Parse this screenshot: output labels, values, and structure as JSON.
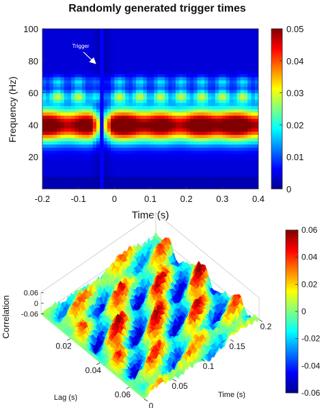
{
  "chart_data": [
    {
      "type": "heatmap",
      "title": "Randomly generated trigger times",
      "xlabel": "Time (s)",
      "ylabel": "Frequency (Hz)",
      "xlim": [
        -0.2,
        0.4
      ],
      "ylim": [
        0,
        100
      ],
      "xticks": [
        "-0.2",
        "-0.1",
        "0",
        "0.1",
        "0.2",
        "0.3",
        "0.4"
      ],
      "yticks": [
        "20",
        "40",
        "60",
        "80",
        "100"
      ],
      "colorbar": {
        "ticks": [
          "0",
          "0.01",
          "0.02",
          "0.03",
          "0.04",
          "0.05"
        ],
        "range": [
          0,
          0.05
        ]
      },
      "annotation": "Trigger",
      "trigger_band": {
        "time_start": -0.042,
        "time_end": -0.028
      },
      "band": {
        "center_freq": 40,
        "width_hz": 7,
        "peak_value": 0.05
      },
      "ringing_peaks": [
        {
          "freq": 58,
          "value": 0.024
        },
        {
          "freq": 67,
          "value": 0.014
        }
      ],
      "colormap": [
        "#00008f",
        "#0000ff",
        "#00ffff",
        "#ffff00",
        "#ff0000",
        "#800000"
      ]
    },
    {
      "type": "surface",
      "xlabel": "Lag (s)",
      "ylabel": "Time (s)",
      "zlabel": "Correlation",
      "xticks": [
        "0.02",
        "0.04",
        "0.06"
      ],
      "yticks": [
        "0",
        "0.05",
        "0.1",
        "0.15",
        "0.2"
      ],
      "zticks": [
        "0.06",
        "0",
        "-0.06"
      ],
      "lag_range": [
        0,
        0.07
      ],
      "time_range": [
        0,
        0.2
      ],
      "corr_range": [
        -0.06,
        0.06
      ],
      "colorbar": {
        "ticks": [
          "0.06",
          "0.04",
          "0.02",
          "0",
          "-0.02",
          "-0.04",
          "-0.06"
        ],
        "range": [
          -0.06,
          0.06
        ]
      },
      "oscillation_period_s": 0.025,
      "colormap": [
        "#00008f",
        "#0000ff",
        "#00ffff",
        "#ffff00",
        "#ff0000",
        "#800000"
      ]
    }
  ]
}
